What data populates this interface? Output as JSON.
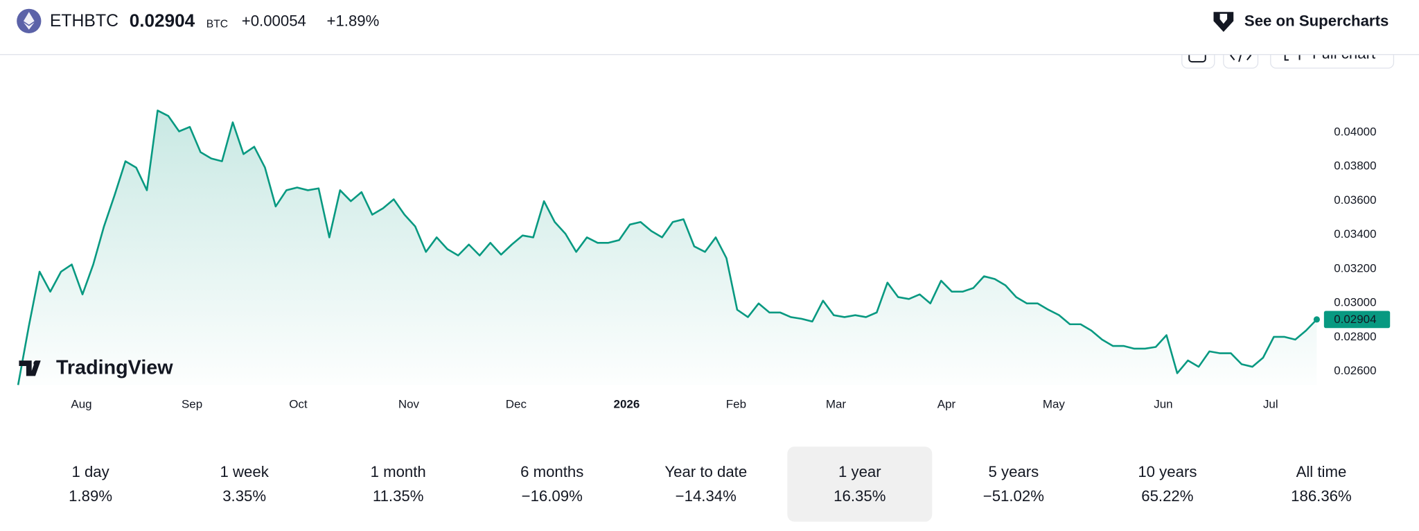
{
  "header": {
    "symbol": "ETHBTC",
    "price": "0.02904",
    "currency": "BTC",
    "change": "+0.00054",
    "change_percent": "+1.89%",
    "link": "See on Supercharts"
  },
  "toolbar": {
    "full_chart": "Full chart"
  },
  "watermark": "TradingView",
  "chart_data": {
    "type": "line",
    "color": "#089981",
    "values": [
      0.0252,
      0.02865,
      0.03184,
      0.03067,
      0.03184,
      0.03226,
      0.03051,
      0.03226,
      0.03449,
      0.03634,
      0.03831,
      0.03794,
      0.03661,
      0.04128,
      0.04096,
      0.04006,
      0.04032,
      0.03884,
      0.03847,
      0.03831,
      0.04059,
      0.03873,
      0.03916,
      0.03794,
      0.03566,
      0.03661,
      0.03677,
      0.03661,
      0.03672,
      0.03385,
      0.03661,
      0.03597,
      0.0365,
      0.03518,
      0.03555,
      0.03608,
      0.03518,
      0.03449,
      0.033,
      0.03385,
      0.03316,
      0.03279,
      0.03343,
      0.03279,
      0.03353,
      0.03284,
      0.03343,
      0.03396,
      0.03385,
      0.03597,
      0.03475,
      0.03406,
      0.033,
      0.03385,
      0.03353,
      0.03353,
      0.03369,
      0.0346,
      0.03475,
      0.03422,
      0.03385,
      0.03475,
      0.03491,
      0.03332,
      0.033,
      0.03385,
      0.03263,
      0.02961,
      0.02918,
      0.02998,
      0.02945,
      0.02945,
      0.02918,
      0.02908,
      0.02892,
      0.03014,
      0.02929,
      0.02918,
      0.02929,
      0.02918,
      0.02945,
      0.0312,
      0.03035,
      0.03024,
      0.03051,
      0.02998,
      0.03131,
      0.03067,
      0.03067,
      0.03088,
      0.03157,
      0.03141,
      0.03104,
      0.03035,
      0.02998,
      0.02998,
      0.02961,
      0.02929,
      0.02876,
      0.02876,
      0.02839,
      0.02786,
      0.02749,
      0.02749,
      0.02733,
      0.02733,
      0.02743,
      0.02812,
      0.02589,
      0.02664,
      0.02627,
      0.02717,
      0.02706,
      0.02706,
      0.02642,
      0.02627,
      0.0268,
      0.02802,
      0.02802,
      0.02786,
      0.02839,
      0.02904
    ],
    "xlim": [
      0,
      121
    ],
    "xticks": [
      {
        "value": 5.9,
        "label": "Aug"
      },
      {
        "value": 16.2,
        "label": "Sep"
      },
      {
        "value": 26.1,
        "label": "Oct"
      },
      {
        "value": 36.4,
        "label": "Nov"
      },
      {
        "value": 46.4,
        "label": "Dec"
      },
      {
        "value": 56.7,
        "label": "2026"
      },
      {
        "value": 66.9,
        "label": "Feb"
      },
      {
        "value": 76.2,
        "label": "Mar"
      },
      {
        "value": 86.5,
        "label": "Apr"
      },
      {
        "value": 96.5,
        "label": "May"
      },
      {
        "value": 106.7,
        "label": "Jun"
      },
      {
        "value": 116.7,
        "label": "Jul"
      }
    ],
    "ylim": [
      0.0252,
      0.0435
    ],
    "yticks": [
      {
        "value": 0.026,
        "label": "0.02600"
      },
      {
        "value": 0.028,
        "label": "0.02800"
      },
      {
        "value": 0.03,
        "label": "0.03000"
      },
      {
        "value": 0.032,
        "label": "0.03200"
      },
      {
        "value": 0.034,
        "label": "0.03400"
      },
      {
        "value": 0.036,
        "label": "0.03600"
      },
      {
        "value": 0.038,
        "label": "0.03800"
      },
      {
        "value": 0.04,
        "label": "0.04000"
      }
    ]
  },
  "periods": [
    {
      "label": "1 day",
      "change": "1.89%"
    },
    {
      "label": "1 week",
      "change": "3.35%"
    },
    {
      "label": "1 month",
      "change": "11.35%"
    },
    {
      "label": "6 months",
      "change": "−16.09%"
    },
    {
      "label": "Year to date",
      "change": "−14.34%"
    },
    {
      "label": "1 year",
      "change": "16.35%"
    },
    {
      "label": "5 years",
      "change": "−51.02%"
    },
    {
      "label": "10 years",
      "change": "65.22%"
    },
    {
      "label": "All time",
      "change": "186.36%"
    }
  ],
  "selected_period": 5
}
